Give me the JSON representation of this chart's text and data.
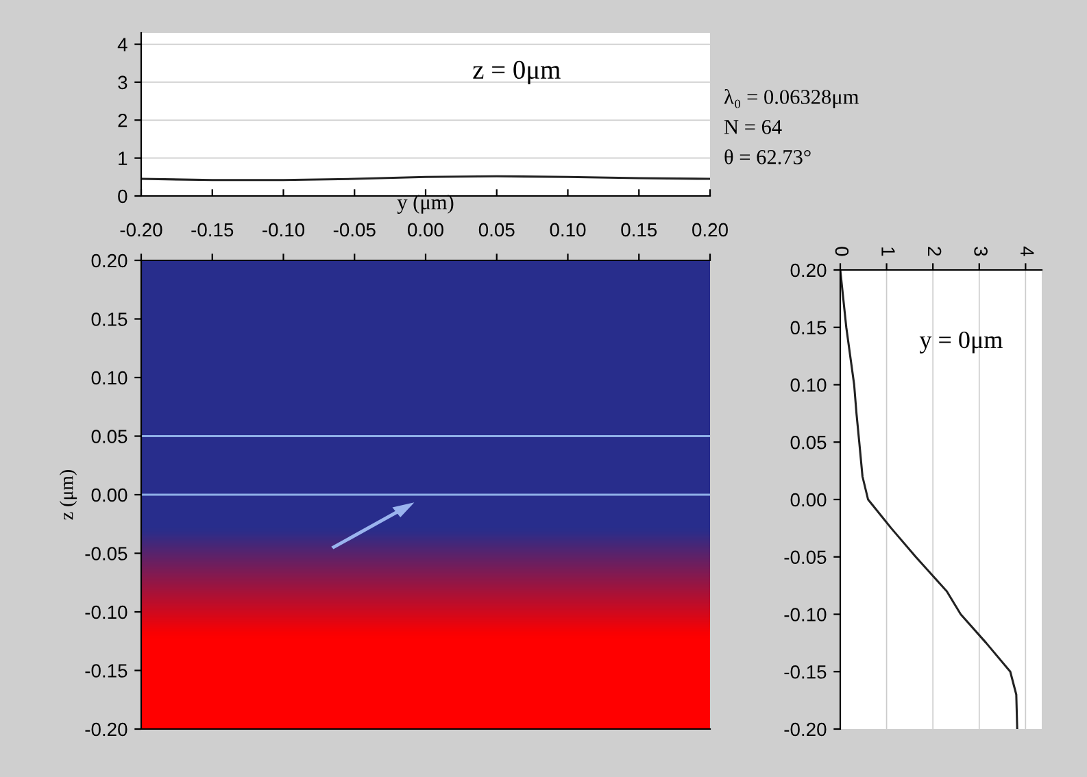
{
  "chart_data": [
    {
      "type": "line",
      "xlabel": "y (μm)",
      "xlim": [
        -0.2,
        0.2
      ],
      "xticks": [
        {
          "value": -0.2,
          "label": "-0.20"
        },
        {
          "value": -0.15,
          "label": "-0.15"
        },
        {
          "value": -0.1,
          "label": "-0.10"
        },
        {
          "value": -0.05,
          "label": "-0.05"
        },
        {
          "value": 0,
          "label": "0.00"
        },
        {
          "value": 0.05,
          "label": "0.05"
        },
        {
          "value": 0.1,
          "label": "0.10"
        },
        {
          "value": 0.15,
          "label": "0.15"
        },
        {
          "value": 0.2,
          "label": "0.20"
        }
      ],
      "ylim": [
        0,
        4.3
      ],
      "yticks": [
        0,
        1,
        2,
        3,
        4
      ],
      "grid": "y",
      "x": [
        -0.2,
        -0.15,
        -0.1,
        -0.05,
        0,
        0.05,
        0.1,
        0.15,
        0.2
      ],
      "series": [
        {
          "color": "#222222",
          "values": [
            0.45,
            0.42,
            0.42,
            0.45,
            0.5,
            0.52,
            0.5,
            0.47,
            0.45
          ]
        }
      ],
      "annotations": [
        "z = 0μm",
        "λ₀ = 0.06328μm",
        "N = 64",
        "θ = 62.73°"
      ]
    },
    {
      "type": "line",
      "ylabel": "z (μm)",
      "xlim": [
        -0.2,
        0.2
      ],
      "xticks": [
        {
          "value": -0.2,
          "label": null
        },
        {
          "value": -0.15,
          "label": null
        },
        {
          "value": -0.1,
          "label": null
        },
        {
          "value": -0.05,
          "label": null
        },
        {
          "value": 0,
          "label": null
        },
        {
          "value": 0.05,
          "label": null
        },
        {
          "value": 0.1,
          "label": null
        },
        {
          "value": 0.15,
          "label": null
        },
        {
          "value": 0.2,
          "label": null
        }
      ],
      "ylim": [
        -0.2,
        0.2
      ],
      "yticks": [
        {
          "value": -0.2,
          "label": "-0.20"
        },
        {
          "value": -0.15,
          "label": "-0.15"
        },
        {
          "value": -0.1,
          "label": "-0.10"
        },
        {
          "value": -0.05,
          "label": "-0.05"
        },
        {
          "value": 0,
          "label": "0.00"
        },
        {
          "value": 0.05,
          "label": "0.05"
        },
        {
          "value": 0.1,
          "label": "0.10"
        },
        {
          "value": 0.15,
          "label": "0.15"
        },
        {
          "value": 0.2,
          "label": "0.20"
        }
      ],
      "tick_labels": "y",
      "ref_lines": [
        {
          "axis": "y",
          "value": 0.05,
          "color": "#8fb0e8"
        },
        {
          "axis": "y",
          "value": 0.0,
          "color": "#8fb0e8"
        }
      ]
    },
    {
      "type": "line",
      "xlim": [
        0,
        4.35
      ],
      "xticks": [
        0,
        1,
        2,
        3,
        4
      ],
      "ylim": [
        -0.2,
        0.2
      ],
      "yticks": [
        {
          "value": -0.2,
          "label": "-0.20"
        },
        {
          "value": -0.15,
          "label": "-0.15"
        },
        {
          "value": -0.1,
          "label": "-0.10"
        },
        {
          "value": -0.05,
          "label": "-0.05"
        },
        {
          "value": 0,
          "label": "0.00"
        },
        {
          "value": 0.05,
          "label": "0.05"
        },
        {
          "value": 0.1,
          "label": "0.10"
        },
        {
          "value": 0.15,
          "label": "0.15"
        },
        {
          "value": 0.2,
          "label": "0.20"
        }
      ],
      "grid": "x",
      "series": [
        {
          "color": "#222222",
          "x": [
            0,
            0.13,
            0.3,
            0.35,
            0.41,
            0.48,
            0.6,
            1.1,
            1.63,
            2.3,
            2.6,
            3.15,
            3.67,
            3.8,
            3.82
          ],
          "values": [
            0.2,
            0.15,
            0.1,
            0.075,
            0.05,
            0.02,
            0.0,
            -0.025,
            -0.05,
            -0.08,
            -0.1,
            -0.125,
            -0.15,
            -0.17,
            -0.2
          ]
        }
      ],
      "annotations": [
        "y = 0μm"
      ]
    }
  ]
}
